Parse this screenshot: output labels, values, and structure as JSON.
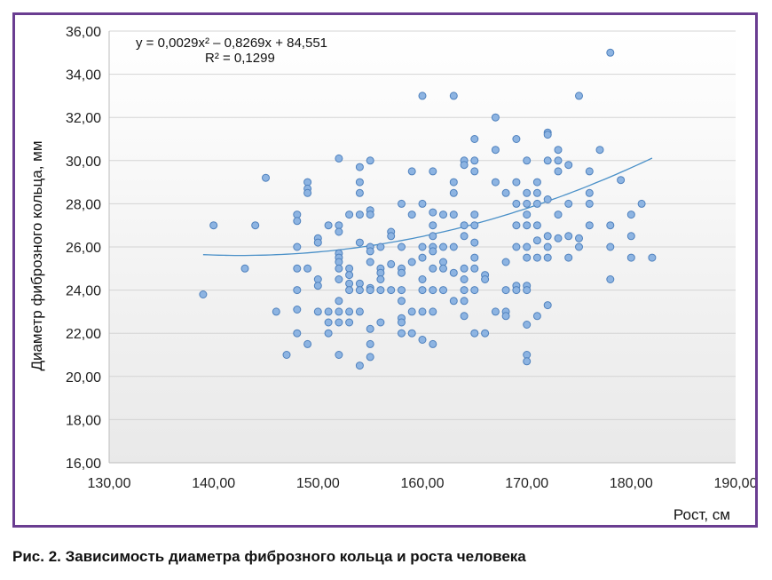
{
  "caption": "Рис. 2. Зависимость диаметра фиброзного кольца и роста человека",
  "colors": {
    "frame": "#6a3d91",
    "point_fill": "#8db4e2",
    "point_stroke": "#4f81bd",
    "trendline": "#4a90c8",
    "plot_bg_top": "#ffffff",
    "plot_bg_bottom": "#e9e9e9"
  },
  "chart_data": {
    "type": "scatter",
    "xlabel": "Рост, см",
    "ylabel": "Диаметр фиброзного кольца, мм",
    "xlim": [
      130,
      190
    ],
    "ylim": [
      16,
      36
    ],
    "x_ticks": [
      "130,00",
      "140,00",
      "150,00",
      "160,00",
      "170,00",
      "180,00",
      "190,00"
    ],
    "y_ticks": [
      "16,00",
      "18,00",
      "20,00",
      "22,00",
      "24,00",
      "26,00",
      "28,00",
      "30,00",
      "32,00",
      "34,00",
      "36,00"
    ],
    "grid": "horizontal",
    "trendline": {
      "type": "polynomial",
      "coefficients": [
        0.0029,
        -0.8269,
        84.551
      ],
      "x_range": [
        139,
        182
      ],
      "equation": "y = 0,0029x² – 0,8269x + 84,551",
      "r_squared": "R² = 0,1299"
    },
    "points": [
      [
        139,
        23.8
      ],
      [
        140,
        27
      ],
      [
        143,
        25
      ],
      [
        144,
        27
      ],
      [
        145,
        29.2
      ],
      [
        146,
        23
      ],
      [
        147,
        21
      ],
      [
        148,
        27.5
      ],
      [
        148,
        27.2
      ],
      [
        148,
        26
      ],
      [
        148,
        25
      ],
      [
        148,
        24
      ],
      [
        148,
        23.1
      ],
      [
        148,
        22
      ],
      [
        149,
        29
      ],
      [
        149,
        28.7
      ],
      [
        149,
        28.5
      ],
      [
        149,
        25
      ],
      [
        149,
        21.5
      ],
      [
        150,
        26.4
      ],
      [
        150,
        26.2
      ],
      [
        150,
        24.5
      ],
      [
        150,
        24.2
      ],
      [
        150,
        23
      ],
      [
        151,
        27
      ],
      [
        151,
        23
      ],
      [
        151,
        22.5
      ],
      [
        151,
        22
      ],
      [
        152,
        30.1
      ],
      [
        152,
        27
      ],
      [
        152,
        26.7
      ],
      [
        152,
        25.7
      ],
      [
        152,
        25.5
      ],
      [
        152,
        25.3
      ],
      [
        152,
        25
      ],
      [
        152,
        24.5
      ],
      [
        152,
        23.5
      ],
      [
        152,
        23
      ],
      [
        152,
        22.5
      ],
      [
        152,
        21
      ],
      [
        153,
        27.5
      ],
      [
        153,
        25
      ],
      [
        153,
        24.7
      ],
      [
        153,
        24.3
      ],
      [
        153,
        24
      ],
      [
        153,
        23
      ],
      [
        153,
        22.5
      ],
      [
        154,
        29.7
      ],
      [
        154,
        29
      ],
      [
        154,
        28.5
      ],
      [
        154,
        27.5
      ],
      [
        154,
        26.2
      ],
      [
        154,
        24.3
      ],
      [
        154,
        24
      ],
      [
        154,
        23
      ],
      [
        154,
        20.5
      ],
      [
        155,
        30
      ],
      [
        155,
        27.7
      ],
      [
        155,
        27.5
      ],
      [
        155,
        26
      ],
      [
        155,
        25.8
      ],
      [
        155,
        25.3
      ],
      [
        155,
        24.1
      ],
      [
        155,
        24
      ],
      [
        155,
        22.2
      ],
      [
        155,
        21.5
      ],
      [
        155,
        20.9
      ],
      [
        156,
        26
      ],
      [
        156,
        25
      ],
      [
        156,
        24.8
      ],
      [
        156,
        24.5
      ],
      [
        156,
        24
      ],
      [
        156,
        22.5
      ],
      [
        157,
        26.7
      ],
      [
        157,
        26.5
      ],
      [
        157,
        25.2
      ],
      [
        157,
        24
      ],
      [
        158,
        28
      ],
      [
        158,
        26
      ],
      [
        158,
        25
      ],
      [
        158,
        24.8
      ],
      [
        158,
        24
      ],
      [
        158,
        23.5
      ],
      [
        158,
        22.7
      ],
      [
        158,
        22.5
      ],
      [
        158,
        22
      ],
      [
        159,
        29.5
      ],
      [
        159,
        27.5
      ],
      [
        159,
        25.3
      ],
      [
        159,
        23
      ],
      [
        159,
        22
      ],
      [
        160,
        33
      ],
      [
        160,
        28
      ],
      [
        160,
        26
      ],
      [
        160,
        25.5
      ],
      [
        160,
        24.5
      ],
      [
        160,
        24
      ],
      [
        160,
        23
      ],
      [
        160,
        21.7
      ],
      [
        161,
        29.5
      ],
      [
        161,
        27.6
      ],
      [
        161,
        27
      ],
      [
        161,
        26.5
      ],
      [
        161,
        26
      ],
      [
        161,
        25.8
      ],
      [
        161,
        25
      ],
      [
        161,
        24
      ],
      [
        161,
        23
      ],
      [
        161,
        21.5
      ],
      [
        162,
        27.5
      ],
      [
        162,
        26
      ],
      [
        162,
        25.3
      ],
      [
        162,
        25
      ],
      [
        162,
        24
      ],
      [
        163,
        33
      ],
      [
        163,
        29
      ],
      [
        163,
        28.5
      ],
      [
        163,
        27.5
      ],
      [
        163,
        26
      ],
      [
        163,
        24.8
      ],
      [
        163,
        23.5
      ],
      [
        164,
        30
      ],
      [
        164,
        29.8
      ],
      [
        164,
        27
      ],
      [
        164,
        26.5
      ],
      [
        164,
        25
      ],
      [
        164,
        24.5
      ],
      [
        164,
        24
      ],
      [
        164,
        23.5
      ],
      [
        164,
        22.8
      ],
      [
        165,
        31
      ],
      [
        165,
        30
      ],
      [
        165,
        29.5
      ],
      [
        165,
        27.5
      ],
      [
        165,
        27
      ],
      [
        165,
        26.2
      ],
      [
        165,
        25.5
      ],
      [
        165,
        25
      ],
      [
        165,
        24
      ],
      [
        165,
        22
      ],
      [
        166,
        24.7
      ],
      [
        166,
        24.5
      ],
      [
        166,
        22
      ],
      [
        167,
        32
      ],
      [
        167,
        30.5
      ],
      [
        167,
        29
      ],
      [
        167,
        23
      ],
      [
        168,
        28.5
      ],
      [
        168,
        25.3
      ],
      [
        168,
        24
      ],
      [
        168,
        23
      ],
      [
        168,
        22.8
      ],
      [
        169,
        31
      ],
      [
        169,
        29
      ],
      [
        169,
        28
      ],
      [
        169,
        27
      ],
      [
        169,
        26
      ],
      [
        169,
        24.2
      ],
      [
        169,
        24
      ],
      [
        170,
        30
      ],
      [
        170,
        28.5
      ],
      [
        170,
        28
      ],
      [
        170,
        27.5
      ],
      [
        170,
        27
      ],
      [
        170,
        26
      ],
      [
        170,
        25.5
      ],
      [
        170,
        24.2
      ],
      [
        170,
        24
      ],
      [
        170,
        22.4
      ],
      [
        170,
        21
      ],
      [
        170,
        20.7
      ],
      [
        171,
        29
      ],
      [
        171,
        28.5
      ],
      [
        171,
        28
      ],
      [
        171,
        27
      ],
      [
        171,
        26.3
      ],
      [
        171,
        25.5
      ],
      [
        171,
        22.8
      ],
      [
        172,
        31.3
      ],
      [
        172,
        31.2
      ],
      [
        172,
        30
      ],
      [
        172,
        28.2
      ],
      [
        172,
        26.5
      ],
      [
        172,
        26
      ],
      [
        172,
        25.5
      ],
      [
        172,
        23.3
      ],
      [
        173,
        30.5
      ],
      [
        173,
        30
      ],
      [
        173,
        29.5
      ],
      [
        173,
        27.5
      ],
      [
        173,
        26.4
      ],
      [
        174,
        29.8
      ],
      [
        174,
        28
      ],
      [
        174,
        26.5
      ],
      [
        174,
        25.5
      ],
      [
        175,
        33
      ],
      [
        175,
        26.4
      ],
      [
        175,
        26
      ],
      [
        176,
        29.5
      ],
      [
        176,
        28.5
      ],
      [
        176,
        28
      ],
      [
        176,
        27
      ],
      [
        177,
        30.5
      ],
      [
        178,
        35
      ],
      [
        178,
        27
      ],
      [
        178,
        26
      ],
      [
        178,
        24.5
      ],
      [
        179,
        29.1
      ],
      [
        180,
        27.5
      ],
      [
        180,
        26.5
      ],
      [
        180,
        25.5
      ],
      [
        181,
        28
      ],
      [
        182,
        25.5
      ]
    ]
  }
}
